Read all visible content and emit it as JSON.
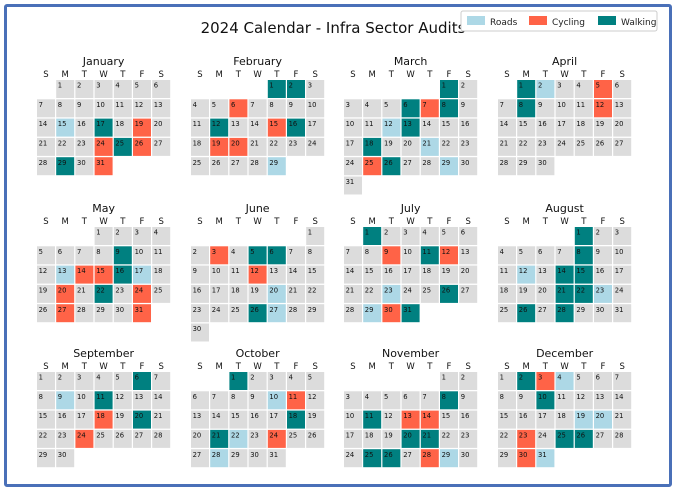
{
  "chart_data": {
    "type": "heatmap",
    "title": "2024 Calendar - Infra Sector Audits",
    "year": 2024,
    "week_start": "Sunday",
    "weekday_labels": [
      "S",
      "M",
      "T",
      "W",
      "T",
      "F",
      "S"
    ],
    "legend_position": "top-right",
    "legend": [
      {
        "key": "roads",
        "label": "Roads"
      },
      {
        "key": "cycling",
        "label": "Cycling"
      },
      {
        "key": "walking",
        "label": "Walking"
      }
    ],
    "colors": {
      "roads": "#add8e6",
      "cycling": "#ff6347",
      "walking": "#008080",
      "none": "#dcdcdc"
    },
    "months": [
      {
        "name": "January",
        "days": 31,
        "roads": [
          15
        ],
        "cycling": [
          19,
          24,
          26,
          31
        ],
        "walking": [
          17,
          25,
          29
        ]
      },
      {
        "name": "February",
        "days": 29,
        "roads": [
          29
        ],
        "cycling": [
          6,
          15,
          19,
          20
        ],
        "walking": [
          1,
          2,
          12,
          16
        ]
      },
      {
        "name": "March",
        "days": 31,
        "roads": [
          12,
          21,
          29
        ],
        "cycling": [
          7,
          25
        ],
        "walking": [
          1,
          6,
          8,
          13,
          18,
          26
        ]
      },
      {
        "name": "April",
        "days": 30,
        "roads": [
          2
        ],
        "cycling": [
          5,
          12
        ],
        "walking": [
          1,
          8
        ]
      },
      {
        "name": "May",
        "days": 31,
        "roads": [
          13,
          17
        ],
        "cycling": [
          14,
          15,
          20,
          24,
          27,
          31
        ],
        "walking": [
          9,
          16,
          22
        ]
      },
      {
        "name": "June",
        "days": 30,
        "roads": [
          20,
          27
        ],
        "cycling": [
          3,
          12
        ],
        "walking": [
          5,
          6,
          26
        ]
      },
      {
        "name": "July",
        "days": 31,
        "roads": [
          23,
          29
        ],
        "cycling": [
          9,
          12,
          30
        ],
        "walking": [
          1,
          11,
          26,
          31
        ]
      },
      {
        "name": "August",
        "days": 31,
        "roads": [
          12,
          23
        ],
        "cycling": [],
        "walking": [
          1,
          8,
          14,
          15,
          21,
          22,
          26,
          28
        ]
      },
      {
        "name": "September",
        "days": 30,
        "roads": [
          9
        ],
        "cycling": [
          18,
          24
        ],
        "walking": [
          6,
          11,
          20
        ]
      },
      {
        "name": "October",
        "days": 31,
        "roads": [
          10,
          22,
          28
        ],
        "cycling": [
          11,
          24
        ],
        "walking": [
          1,
          18,
          21
        ]
      },
      {
        "name": "November",
        "days": 30,
        "roads": [
          29
        ],
        "cycling": [
          13,
          14,
          28
        ],
        "walking": [
          8,
          11,
          20,
          21,
          25,
          26
        ]
      },
      {
        "name": "December",
        "days": 31,
        "roads": [
          4,
          19,
          20,
          31
        ],
        "cycling": [
          3,
          23,
          30
        ],
        "walking": [
          2,
          10,
          25,
          26
        ]
      }
    ]
  }
}
